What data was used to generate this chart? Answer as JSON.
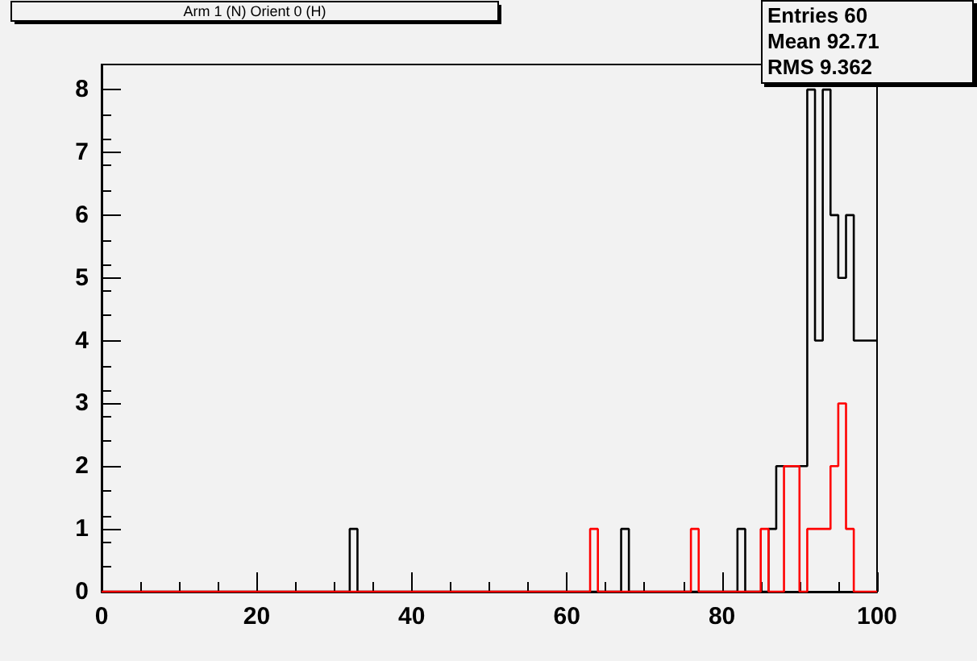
{
  "chart_data": {
    "type": "histogram",
    "title": "Arm 1 (N) Orient 0 (H)",
    "bins": [
      0,
      1,
      2,
      3,
      4,
      5,
      6,
      7,
      8,
      9,
      10,
      11,
      12,
      13,
      14,
      15,
      16,
      17,
      18,
      19,
      20,
      21,
      22,
      23,
      24,
      25,
      26,
      27,
      28,
      29,
      30,
      31,
      32,
      33,
      34,
      35,
      36,
      37,
      38,
      39,
      40,
      41,
      42,
      43,
      44,
      45,
      46,
      47,
      48,
      49,
      50,
      51,
      52,
      53,
      54,
      55,
      56,
      57,
      58,
      59,
      60,
      61,
      62,
      63,
      64,
      65,
      66,
      67,
      68,
      69,
      70,
      71,
      72,
      73,
      74,
      75,
      76,
      77,
      78,
      79,
      80,
      81,
      82,
      83,
      84,
      85,
      86,
      87,
      88,
      89,
      90,
      91,
      92,
      93,
      94,
      95,
      96,
      97,
      98,
      99,
      100
    ],
    "series": [
      {
        "color": "#000000",
        "values": [
          0,
          0,
          0,
          0,
          0,
          0,
          0,
          0,
          0,
          0,
          0,
          0,
          0,
          0,
          0,
          0,
          0,
          0,
          0,
          0,
          0,
          0,
          0,
          0,
          0,
          0,
          0,
          0,
          0,
          0,
          0,
          0,
          1,
          0,
          0,
          0,
          0,
          0,
          0,
          0,
          0,
          0,
          0,
          0,
          0,
          0,
          0,
          0,
          0,
          0,
          0,
          0,
          0,
          0,
          0,
          0,
          0,
          0,
          0,
          0,
          0,
          0,
          0,
          0,
          0,
          0,
          0,
          1,
          0,
          0,
          0,
          0,
          0,
          0,
          0,
          0,
          0,
          0,
          0,
          0,
          0,
          0,
          1,
          0,
          0,
          0,
          1,
          2,
          2,
          2,
          2,
          8,
          4,
          8,
          6,
          5,
          6,
          4,
          4,
          4
        ]
      },
      {
        "color": "#ff0000",
        "values": [
          0,
          0,
          0,
          0,
          0,
          0,
          0,
          0,
          0,
          0,
          0,
          0,
          0,
          0,
          0,
          0,
          0,
          0,
          0,
          0,
          0,
          0,
          0,
          0,
          0,
          0,
          0,
          0,
          0,
          0,
          0,
          0,
          0,
          0,
          0,
          0,
          0,
          0,
          0,
          0,
          0,
          0,
          0,
          0,
          0,
          0,
          0,
          0,
          0,
          0,
          0,
          0,
          0,
          0,
          0,
          0,
          0,
          0,
          0,
          0,
          0,
          0,
          0,
          1,
          0,
          0,
          0,
          0,
          0,
          0,
          0,
          0,
          0,
          0,
          0,
          0,
          1,
          0,
          0,
          0,
          0,
          0,
          0,
          0,
          0,
          1,
          0,
          0,
          2,
          2,
          0,
          1,
          1,
          1,
          2,
          3,
          1,
          0,
          0,
          0
        ]
      }
    ],
    "annotations": [
      "Entries 60",
      "Mean 92.71",
      "RMS 9.362"
    ],
    "xlim": [
      0,
      100
    ],
    "xticks": [
      0,
      20,
      40,
      60,
      80,
      100
    ],
    "ylim": [
      0,
      8.4
    ],
    "yticks": [
      0,
      1,
      2,
      3,
      4,
      5,
      6,
      7,
      8
    ],
    "grid": false
  }
}
